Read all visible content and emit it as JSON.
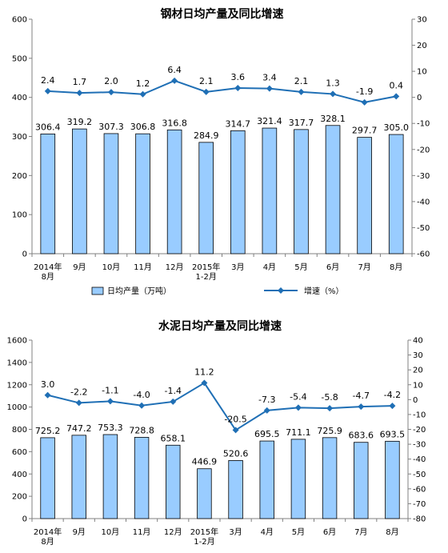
{
  "chart_data": [
    {
      "type": "bar",
      "title": "钢材日均产量及同比增速",
      "categories": [
        "2014年\n8月",
        "9月",
        "10月",
        "11月",
        "12月",
        "2015年\n1-2月",
        "3月",
        "4月",
        "5月",
        "6月",
        "7月",
        "8月"
      ],
      "series": [
        {
          "name": "日均产量（万吨）",
          "kind": "bar",
          "axis": "left",
          "color": "#99ccff",
          "values": [
            306.4,
            319.2,
            307.3,
            306.8,
            316.8,
            284.9,
            314.7,
            321.4,
            317.7,
            328.1,
            297.7,
            305.0
          ],
          "labels": [
            "306.4",
            "319.2",
            "307.3",
            "306.8",
            "316.8",
            "284.9",
            "314.7",
            "321.4",
            "317.7",
            "328.1",
            "297.7",
            "305.0"
          ]
        },
        {
          "name": "增速（%）",
          "kind": "line",
          "axis": "right",
          "color": "#1f6fb5",
          "values": [
            2.4,
            1.7,
            2.0,
            1.2,
            6.4,
            2.1,
            3.6,
            3.4,
            2.1,
            1.3,
            -1.9,
            0.4
          ],
          "labels": [
            "2.4",
            "1.7",
            "2.0",
            "1.2",
            "6.4",
            "2.1",
            "3.6",
            "3.4",
            "2.1",
            "1.3",
            "-1.9",
            "0.4"
          ]
        }
      ],
      "ylim": [
        0,
        600
      ],
      "yticks": [
        "0",
        "100",
        "200",
        "300",
        "400",
        "500",
        "600"
      ],
      "y2lim": [
        -60,
        30
      ],
      "y2ticks": [
        "-60",
        "-50",
        "-40",
        "-30",
        "-20",
        "-10",
        "0",
        "10",
        "20",
        "30"
      ],
      "legend_placement": "bottom"
    },
    {
      "type": "bar",
      "title": "水泥日均产量及同比增速",
      "categories": [
        "2014年\n8月",
        "9月",
        "10月",
        "11月",
        "12月",
        "2015年\n1-2月",
        "3月",
        "4月",
        "5月",
        "6月",
        "7月",
        "8月"
      ],
      "series": [
        {
          "name": "",
          "kind": "bar",
          "axis": "left",
          "color": "#99ccff",
          "values": [
            725.2,
            747.2,
            753.3,
            728.8,
            658.1,
            446.9,
            520.6,
            695.5,
            711.1,
            725.9,
            683.6,
            693.5
          ],
          "labels": [
            "725.2",
            "747.2",
            "753.3",
            "728.8",
            "658.1",
            "446.9",
            "520.6",
            "695.5",
            "711.1",
            "725.9",
            "683.6",
            "693.5"
          ]
        },
        {
          "name": "",
          "kind": "line",
          "axis": "right",
          "color": "#1f6fb5",
          "values": [
            3.0,
            -2.2,
            -1.1,
            -4.0,
            -1.4,
            11.2,
            -20.5,
            -7.3,
            -5.4,
            -5.8,
            -4.7,
            -4.2
          ],
          "labels": [
            "3.0",
            "-2.2",
            "-1.1",
            "-4.0",
            "-1.4",
            "11.2",
            "-20.5",
            "-7.3",
            "-5.4",
            "-5.8",
            "-4.7",
            "-4.2"
          ]
        }
      ],
      "ylim": [
        0,
        1600
      ],
      "yticks": [
        "0",
        "200",
        "400",
        "600",
        "800",
        "1000",
        "1200",
        "1400",
        "1600"
      ],
      "y2lim": [
        -80,
        40
      ],
      "y2ticks": [
        "-80",
        "-70",
        "-60",
        "-50",
        "-40",
        "-30",
        "-20",
        "-10",
        "0",
        "10",
        "20",
        "30",
        "40"
      ]
    }
  ]
}
